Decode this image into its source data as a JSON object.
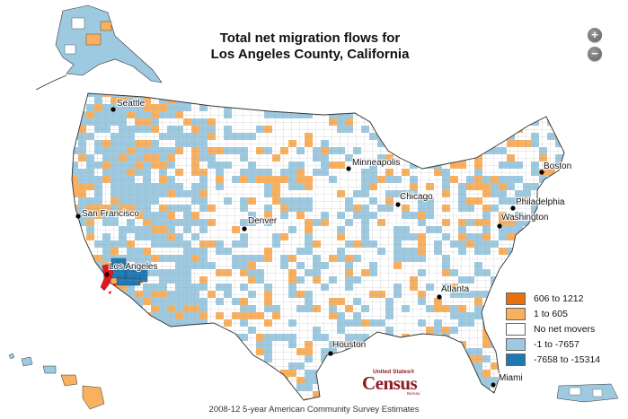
{
  "map": {
    "title_line1": "Total net migration flows for",
    "title_line2": "Los Angeles County, California",
    "focus_county": "Los Angeles",
    "colors": {
      "gain_high": "#e66f0e",
      "gain_low": "#f9b05f",
      "none": "#ffffff",
      "loss_low": "#9ecae1",
      "loss_high": "#1f78b4",
      "focus": "#e8141c",
      "border": "#333333"
    }
  },
  "zoom": {
    "in_label": "+",
    "out_label": "−"
  },
  "cities": [
    {
      "name": "Seattle"
    },
    {
      "name": "San Francisco"
    },
    {
      "name": "Los Angeles"
    },
    {
      "name": "Denver"
    },
    {
      "name": "Minneapolis"
    },
    {
      "name": "Chicago"
    },
    {
      "name": "Houston"
    },
    {
      "name": "Atlanta"
    },
    {
      "name": "Washington"
    },
    {
      "name": "Philadelphia"
    },
    {
      "name": "Boston"
    },
    {
      "name": "Miami"
    }
  ],
  "legend": {
    "items": [
      {
        "label": "606 to 1212",
        "color": "#e66f0e"
      },
      {
        "label": "1 to 605",
        "color": "#f9b05f"
      },
      {
        "label": "No net movers",
        "color": "#ffffff"
      },
      {
        "label": "-1 to -7657",
        "color": "#9ecae1"
      },
      {
        "label": "-7658 to -15314",
        "color": "#1f78b4"
      }
    ]
  },
  "logo": {
    "small": "United States®",
    "big": "Census",
    "bureau": "Bureau"
  },
  "footer": {
    "source": "2008-12 5-year American Community Survey Estimates"
  }
}
